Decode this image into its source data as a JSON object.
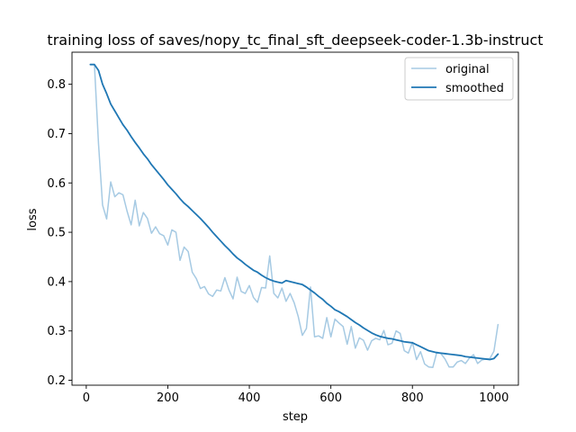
{
  "chart_data": {
    "type": "line",
    "title": "training loss of saves/nopy_tc_final_sft_deepseek-coder-1.3b-instruct",
    "xlabel": "step",
    "ylabel": "loss",
    "xlim": [
      -35,
      1060
    ],
    "ylim": [
      0.19,
      0.865
    ],
    "xticks": [
      0,
      200,
      400,
      600,
      800,
      1000
    ],
    "yticks": [
      0.2,
      0.3,
      0.4,
      0.5,
      0.6,
      0.7,
      0.8
    ],
    "grid": false,
    "legend_position": "top-right",
    "series": [
      {
        "name": "original",
        "color": "#a6cae3",
        "x": [
          10,
          20,
          30,
          40,
          50,
          60,
          70,
          80,
          90,
          100,
          110,
          120,
          130,
          140,
          150,
          160,
          170,
          180,
          190,
          200,
          210,
          220,
          230,
          240,
          250,
          260,
          270,
          280,
          290,
          300,
          310,
          320,
          330,
          340,
          350,
          360,
          370,
          380,
          390,
          400,
          410,
          420,
          430,
          440,
          450,
          460,
          470,
          480,
          490,
          500,
          510,
          520,
          530,
          540,
          550,
          560,
          570,
          580,
          590,
          600,
          610,
          620,
          630,
          640,
          650,
          660,
          670,
          680,
          690,
          700,
          710,
          720,
          730,
          740,
          750,
          760,
          770,
          780,
          790,
          800,
          810,
          820,
          830,
          840,
          850,
          860,
          870,
          880,
          890,
          900,
          910,
          920,
          930,
          940,
          950,
          960,
          970,
          980,
          990,
          1000,
          1010
        ],
        "y": [
          0.84,
          0.84,
          0.68,
          0.555,
          0.527,
          0.602,
          0.572,
          0.58,
          0.576,
          0.543,
          0.515,
          0.565,
          0.513,
          0.54,
          0.528,
          0.498,
          0.511,
          0.497,
          0.493,
          0.474,
          0.505,
          0.5,
          0.443,
          0.47,
          0.461,
          0.419,
          0.406,
          0.386,
          0.39,
          0.375,
          0.37,
          0.383,
          0.381,
          0.408,
          0.383,
          0.365,
          0.409,
          0.38,
          0.376,
          0.392,
          0.368,
          0.358,
          0.388,
          0.387,
          0.452,
          0.376,
          0.367,
          0.387,
          0.36,
          0.376,
          0.357,
          0.329,
          0.291,
          0.305,
          0.389,
          0.288,
          0.29,
          0.285,
          0.327,
          0.288,
          0.324,
          0.316,
          0.309,
          0.273,
          0.309,
          0.265,
          0.286,
          0.281,
          0.261,
          0.28,
          0.285,
          0.282,
          0.301,
          0.272,
          0.275,
          0.3,
          0.295,
          0.26,
          0.255,
          0.277,
          0.242,
          0.258,
          0.233,
          0.227,
          0.226,
          0.257,
          0.254,
          0.243,
          0.227,
          0.227,
          0.237,
          0.24,
          0.234,
          0.245,
          0.252,
          0.234,
          0.241,
          0.243,
          0.244,
          0.259,
          0.313
        ]
      },
      {
        "name": "smoothed",
        "color": "#1f77b4",
        "x": [
          10,
          20,
          30,
          40,
          50,
          60,
          70,
          80,
          90,
          100,
          110,
          120,
          130,
          140,
          150,
          160,
          170,
          180,
          190,
          200,
          210,
          220,
          230,
          240,
          250,
          260,
          270,
          280,
          290,
          300,
          310,
          320,
          330,
          340,
          350,
          360,
          370,
          380,
          390,
          400,
          410,
          420,
          430,
          440,
          450,
          460,
          470,
          480,
          490,
          500,
          510,
          520,
          530,
          540,
          550,
          560,
          570,
          580,
          590,
          600,
          610,
          620,
          630,
          640,
          650,
          660,
          670,
          680,
          690,
          700,
          710,
          720,
          730,
          740,
          750,
          760,
          770,
          780,
          790,
          800,
          810,
          820,
          830,
          840,
          850,
          860,
          870,
          880,
          890,
          900,
          910,
          920,
          930,
          940,
          950,
          960,
          970,
          980,
          990,
          1000,
          1010
        ],
        "y": [
          0.84,
          0.84,
          0.828,
          0.8,
          0.781,
          0.76,
          0.746,
          0.732,
          0.718,
          0.707,
          0.694,
          0.682,
          0.671,
          0.659,
          0.649,
          0.637,
          0.627,
          0.617,
          0.607,
          0.596,
          0.587,
          0.578,
          0.568,
          0.559,
          0.552,
          0.544,
          0.536,
          0.528,
          0.519,
          0.51,
          0.5,
          0.491,
          0.482,
          0.473,
          0.465,
          0.456,
          0.448,
          0.442,
          0.435,
          0.429,
          0.423,
          0.419,
          0.413,
          0.408,
          0.404,
          0.401,
          0.399,
          0.397,
          0.402,
          0.4,
          0.398,
          0.396,
          0.394,
          0.389,
          0.383,
          0.377,
          0.37,
          0.364,
          0.356,
          0.35,
          0.343,
          0.339,
          0.334,
          0.329,
          0.323,
          0.317,
          0.312,
          0.306,
          0.301,
          0.296,
          0.292,
          0.289,
          0.287,
          0.285,
          0.284,
          0.282,
          0.28,
          0.278,
          0.277,
          0.276,
          0.272,
          0.268,
          0.264,
          0.26,
          0.258,
          0.256,
          0.255,
          0.254,
          0.253,
          0.252,
          0.251,
          0.25,
          0.248,
          0.247,
          0.246,
          0.245,
          0.244,
          0.243,
          0.242,
          0.244,
          0.253
        ]
      }
    ]
  }
}
